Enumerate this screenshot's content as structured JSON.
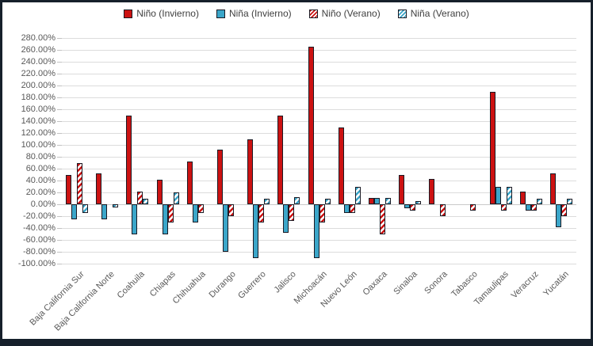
{
  "window": {
    "background_color": "#ffffff",
    "frame_color": "#16202b"
  },
  "axis": {
    "ytick_suffix": "%",
    "ytick_decimals": 2,
    "grid_color": "#dcdcdc",
    "text_color": "#595959"
  },
  "chart_data": {
    "type": "bar",
    "title": "",
    "xlabel": "",
    "ylabel": "",
    "ylim": [
      -100,
      280
    ],
    "ytick_step": 20,
    "grid": true,
    "legend_position": "top",
    "categories": [
      "Baja California Sur",
      "Baja California Norte",
      "Coahuila",
      "Chiapas",
      "Chihuahua",
      "Durango",
      "Guerrero",
      "Jalisco",
      "Michoacán",
      "Nuevo León",
      "Oaxaca",
      "Sinaloa",
      "Sonora",
      "Tabasco",
      "Tamaulipas",
      "Veracruz",
      "Yucatán"
    ],
    "series": [
      {
        "name": "Niño (Invierno)",
        "color": "#cc1212",
        "pattern": "solid",
        "values": [
          50,
          52,
          150,
          41,
          72,
          92,
          110,
          150,
          265,
          130,
          11,
          50,
          43,
          0,
          190,
          21,
          52
        ]
      },
      {
        "name": "Niña (Invierno)",
        "color": "#3ba6c9",
        "pattern": "solid",
        "values": [
          -25,
          -25,
          -50,
          -50,
          -30,
          -80,
          -90,
          -48,
          -90,
          -15,
          11,
          -7,
          0,
          0,
          30,
          -10,
          -38
        ]
      },
      {
        "name": "Niño (Verano)",
        "color": "#cc1212",
        "pattern": "hatched",
        "values": [
          70,
          0,
          22,
          -30,
          -15,
          -20,
          -30,
          -28,
          -30,
          -15,
          -50,
          -10,
          -20,
          -10,
          -10,
          -10,
          -20
        ]
      },
      {
        "name": "Niña (Verano)",
        "color": "#3ba6c9",
        "pattern": "hatched",
        "values": [
          -15,
          -5,
          10,
          20,
          0,
          0,
          10,
          12,
          10,
          30,
          11,
          5,
          0,
          0,
          30,
          10,
          10
        ]
      }
    ]
  }
}
